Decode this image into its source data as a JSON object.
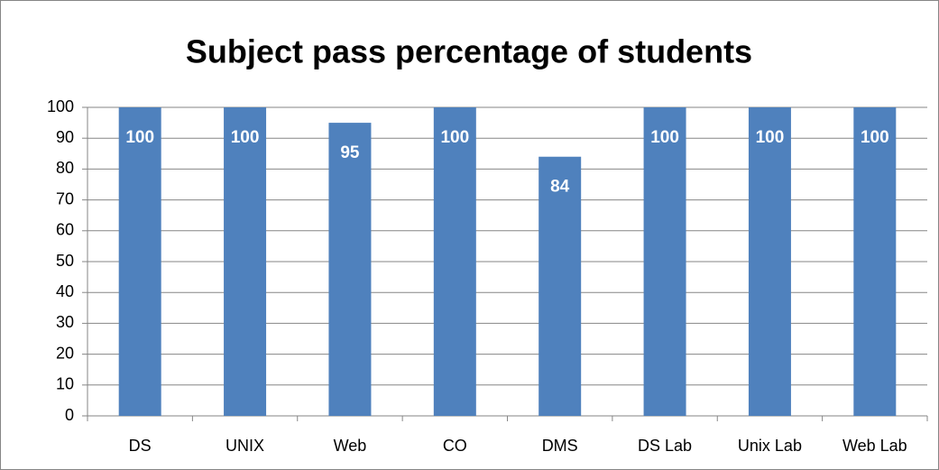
{
  "chart_data": {
    "type": "bar",
    "title": "Subject pass percentage of students",
    "categories": [
      "DS",
      "UNIX",
      "Web",
      "CO",
      "DMS",
      "DS Lab",
      "Unix Lab",
      "Web Lab"
    ],
    "values": [
      100,
      100,
      95,
      100,
      84,
      100,
      100,
      100
    ],
    "color": "#4f81bd",
    "ylim": [
      0,
      100
    ],
    "yticks": [
      0,
      10,
      20,
      30,
      40,
      50,
      60,
      70,
      80,
      90,
      100
    ],
    "grid": true
  }
}
